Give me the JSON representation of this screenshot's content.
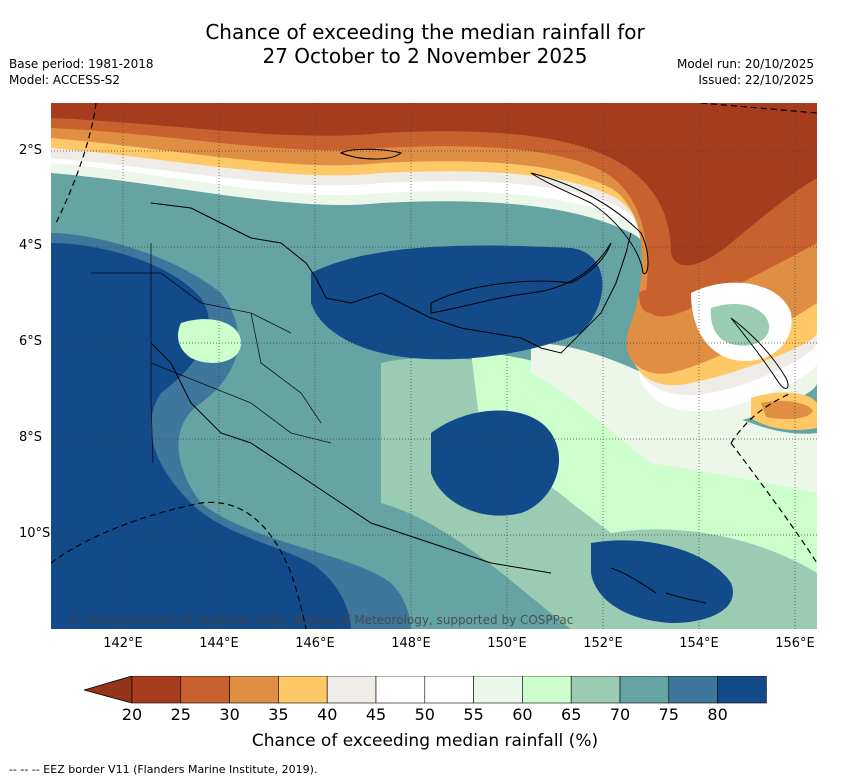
{
  "title": {
    "line1": "Chance of exceeding the median rainfall for",
    "line2": "27 October to 2 November 2025"
  },
  "meta_left": {
    "base_period": "Base period: 1981-2018",
    "model": "Model: ACCESS-S2"
  },
  "meta_right": {
    "model_run": "Model run: 20/10/2025",
    "issued": "Issued: 22/10/2025"
  },
  "copyright": "© Commonwealth of Australia 2025, Bureau of Meteorology, supported by COSPPac",
  "axes": {
    "x_ticks": [
      "142°E",
      "144°E",
      "146°E",
      "148°E",
      "150°E",
      "152°E",
      "154°E",
      "156°E"
    ],
    "y_ticks": [
      "2°S",
      "4°S",
      "6°S",
      "8°S",
      "10°S"
    ]
  },
  "colorbar": {
    "labels": [
      "20",
      "25",
      "30",
      "35",
      "40",
      "45",
      "50",
      "55",
      "60",
      "65",
      "70",
      "75",
      "80"
    ],
    "colors": [
      "#a63b1e",
      "#c9612e",
      "#e08e44",
      "#fdc865",
      "#efebe6",
      "#ffffff",
      "#ffffff",
      "#ecf7ea",
      "#ccffcc",
      "#99ccb3",
      "#66a3a3",
      "#3f779c",
      "#134a8a"
    ],
    "under_color": "#943419",
    "over_color": "#134a8a",
    "title": "Chance of exceeding median rainfall (%)"
  },
  "legend": "--  --  -- EEZ border V11 (Flanders Marine Institute, 2019)."
}
